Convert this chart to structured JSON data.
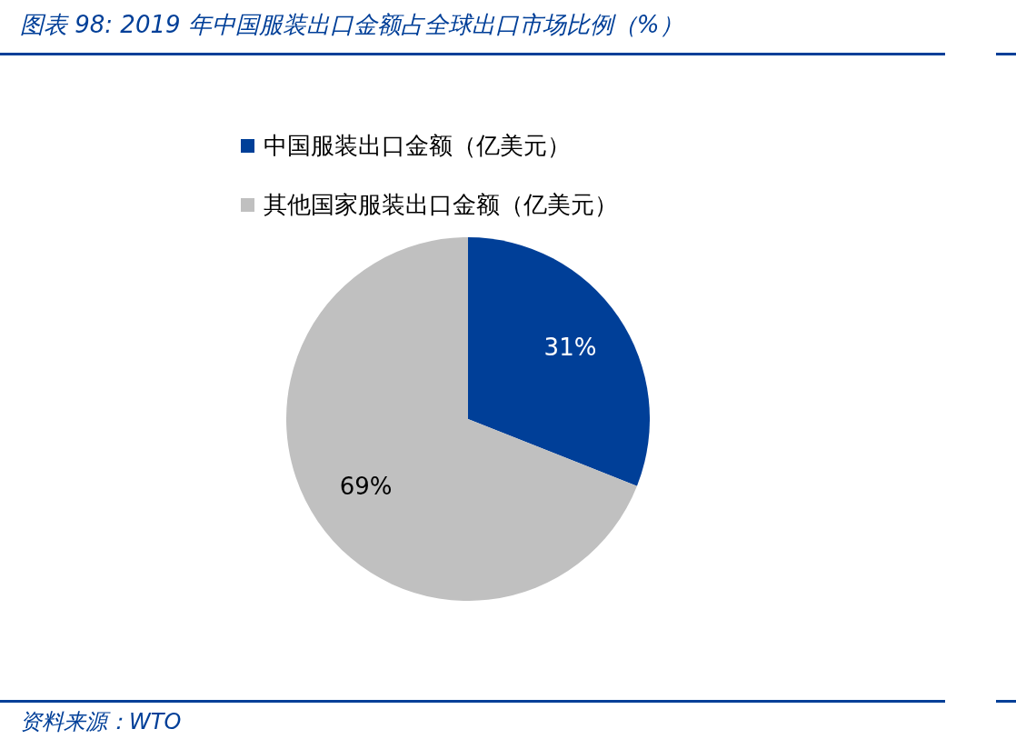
{
  "chart_data": {
    "type": "pie",
    "title": "图表 98: 2019 年中国服装出口金额占全球出口市场比例（%）",
    "categories": [
      "中国服装出口金额（亿美元）",
      "其他国家服装出口金额（亿美元）"
    ],
    "values": [
      31,
      69
    ],
    "colors": [
      "#003f98",
      "#c0c0c0"
    ],
    "value_labels": [
      "31%",
      "69%"
    ],
    "legend": "top",
    "annotations": [
      "资料来源：WTO"
    ]
  }
}
